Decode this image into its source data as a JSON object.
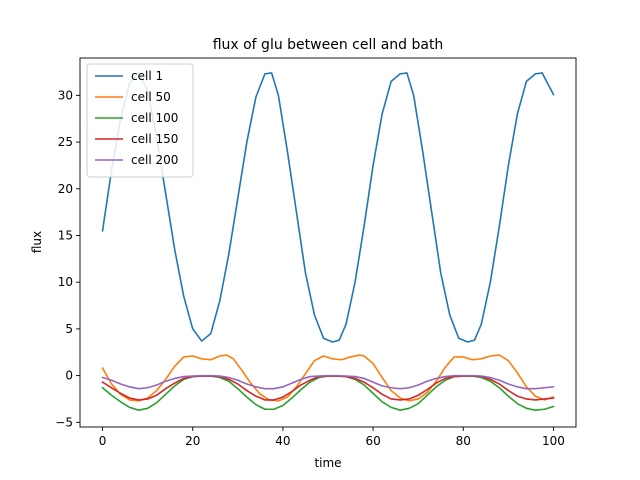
{
  "chart_data": {
    "type": "line",
    "title": "flux of glu between cell and bath",
    "xlabel": "time",
    "ylabel": "flux",
    "xlim": [
      -5,
      105
    ],
    "ylim": [
      -5.5,
      34
    ],
    "xticks": [
      0,
      20,
      40,
      60,
      80,
      100
    ],
    "yticks": [
      -5,
      0,
      5,
      10,
      15,
      20,
      25,
      30
    ],
    "grid": false,
    "legend_position": "top-left",
    "series": [
      {
        "name": "cell 1",
        "color": "#1f77b4",
        "x": [
          0,
          2,
          4,
          6,
          8,
          10,
          12,
          14,
          16,
          18,
          20,
          22,
          24,
          26,
          28,
          30,
          32,
          34,
          36,
          37.5,
          39,
          41,
          43,
          45,
          47,
          49,
          51,
          52.5,
          54,
          56,
          58,
          60,
          62,
          64,
          66,
          67.5,
          69,
          71,
          73,
          75,
          77,
          79,
          81,
          82.5,
          84,
          86,
          88,
          90,
          92,
          94,
          96,
          97.5,
          99,
          100
        ],
        "y": [
          15.5,
          22.0,
          27.5,
          31.3,
          32.4,
          30.5,
          25.5,
          19.5,
          13.5,
          8.5,
          5.0,
          3.7,
          4.5,
          8.0,
          13.0,
          19.0,
          25.0,
          29.8,
          32.3,
          32.4,
          30.0,
          24.0,
          17.5,
          11.0,
          6.5,
          4.0,
          3.6,
          3.8,
          5.5,
          10.0,
          16.0,
          22.5,
          28.0,
          31.5,
          32.3,
          32.4,
          30.0,
          24.0,
          17.5,
          11.0,
          6.5,
          4.0,
          3.6,
          3.8,
          5.5,
          10.0,
          16.0,
          22.5,
          28.0,
          31.5,
          32.3,
          32.4,
          31.0,
          30.1
        ]
      },
      {
        "name": "cell 50",
        "color": "#ff7f0e",
        "x": [
          0,
          2,
          4,
          6,
          8,
          10,
          12,
          14,
          16,
          18,
          20,
          22,
          24,
          26,
          27.5,
          29,
          31,
          33,
          35,
          37,
          39,
          41,
          43,
          45,
          47,
          49,
          51,
          53,
          55,
          57,
          58,
          60,
          62,
          64,
          66,
          68,
          70,
          72,
          74,
          76,
          78,
          80,
          82,
          84,
          86,
          88,
          90,
          92,
          94,
          96,
          98,
          100
        ],
        "y": [
          0.8,
          -0.9,
          -2.0,
          -2.6,
          -2.7,
          -2.4,
          -1.6,
          -0.4,
          1.0,
          2.0,
          2.1,
          1.8,
          1.7,
          2.1,
          2.2,
          1.8,
          0.5,
          -0.9,
          -2.0,
          -2.6,
          -2.7,
          -2.3,
          -1.2,
          0.2,
          1.6,
          2.1,
          1.8,
          1.7,
          2.0,
          2.2,
          2.1,
          1.3,
          -0.2,
          -1.6,
          -2.4,
          -2.7,
          -2.5,
          -1.8,
          -0.6,
          0.9,
          2.0,
          2.0,
          1.7,
          1.8,
          2.1,
          2.2,
          1.6,
          0.3,
          -1.2,
          -2.2,
          -2.6,
          -2.3
        ]
      },
      {
        "name": "cell 100",
        "color": "#2ca02c",
        "x": [
          0,
          2,
          4,
          6,
          8,
          10,
          12,
          14,
          16,
          18,
          20,
          22,
          24,
          26,
          28,
          30,
          32,
          34,
          36,
          38,
          40,
          42,
          44,
          46,
          48,
          50,
          52,
          54,
          56,
          58,
          60,
          62,
          64,
          66,
          68,
          70,
          72,
          74,
          76,
          78,
          80,
          82,
          84,
          86,
          88,
          90,
          92,
          94,
          96,
          98,
          100
        ],
        "y": [
          -1.3,
          -2.1,
          -2.8,
          -3.4,
          -3.7,
          -3.5,
          -2.9,
          -2.0,
          -1.1,
          -0.4,
          -0.1,
          -0.05,
          -0.05,
          -0.2,
          -0.6,
          -1.4,
          -2.3,
          -3.1,
          -3.6,
          -3.6,
          -3.2,
          -2.4,
          -1.5,
          -0.7,
          -0.2,
          -0.05,
          -0.05,
          -0.1,
          -0.4,
          -1.0,
          -1.9,
          -2.8,
          -3.4,
          -3.7,
          -3.5,
          -3.0,
          -2.1,
          -1.2,
          -0.5,
          -0.1,
          -0.05,
          -0.05,
          -0.2,
          -0.6,
          -1.3,
          -2.2,
          -3.0,
          -3.5,
          -3.7,
          -3.6,
          -3.3
        ]
      },
      {
        "name": "cell 150",
        "color": "#d62728",
        "x": [
          0,
          2,
          4,
          6,
          8,
          10,
          12,
          14,
          16,
          18,
          20,
          22,
          24,
          26,
          28,
          30,
          32,
          34,
          36,
          38,
          40,
          42,
          44,
          46,
          48,
          50,
          52,
          54,
          56,
          58,
          60,
          62,
          64,
          66,
          68,
          70,
          72,
          74,
          76,
          78,
          80,
          82,
          84,
          86,
          88,
          90,
          92,
          94,
          96,
          98,
          100
        ],
        "y": [
          -0.7,
          -1.3,
          -1.9,
          -2.4,
          -2.6,
          -2.5,
          -2.1,
          -1.4,
          -0.8,
          -0.3,
          -0.1,
          -0.05,
          -0.05,
          -0.1,
          -0.4,
          -0.9,
          -1.6,
          -2.2,
          -2.6,
          -2.6,
          -2.3,
          -1.7,
          -1.0,
          -0.5,
          -0.1,
          -0.05,
          -0.05,
          -0.1,
          -0.3,
          -0.7,
          -1.3,
          -2.0,
          -2.5,
          -2.6,
          -2.5,
          -2.1,
          -1.5,
          -0.8,
          -0.3,
          -0.1,
          -0.05,
          -0.05,
          -0.1,
          -0.4,
          -0.9,
          -1.6,
          -2.2,
          -2.5,
          -2.6,
          -2.5,
          -2.4
        ]
      },
      {
        "name": "cell 200",
        "color": "#9467bd",
        "x": [
          0,
          2,
          4,
          6,
          8,
          10,
          12,
          14,
          16,
          18,
          20,
          22,
          24,
          26,
          28,
          30,
          32,
          34,
          36,
          38,
          40,
          42,
          44,
          46,
          48,
          50,
          52,
          54,
          56,
          58,
          60,
          62,
          64,
          66,
          68,
          70,
          72,
          74,
          76,
          78,
          80,
          82,
          84,
          86,
          88,
          90,
          92,
          94,
          96,
          98,
          100
        ],
        "y": [
          -0.2,
          -0.5,
          -0.9,
          -1.2,
          -1.4,
          -1.3,
          -1.0,
          -0.6,
          -0.3,
          -0.1,
          -0.05,
          0.0,
          0.0,
          -0.05,
          -0.2,
          -0.5,
          -0.9,
          -1.2,
          -1.4,
          -1.4,
          -1.2,
          -0.8,
          -0.4,
          -0.1,
          -0.05,
          0.0,
          0.0,
          -0.05,
          -0.1,
          -0.3,
          -0.7,
          -1.1,
          -1.3,
          -1.4,
          -1.3,
          -1.0,
          -0.6,
          -0.3,
          -0.1,
          0.0,
          0.0,
          0.0,
          -0.05,
          -0.2,
          -0.5,
          -0.9,
          -1.2,
          -1.4,
          -1.4,
          -1.3,
          -1.2
        ]
      }
    ]
  }
}
